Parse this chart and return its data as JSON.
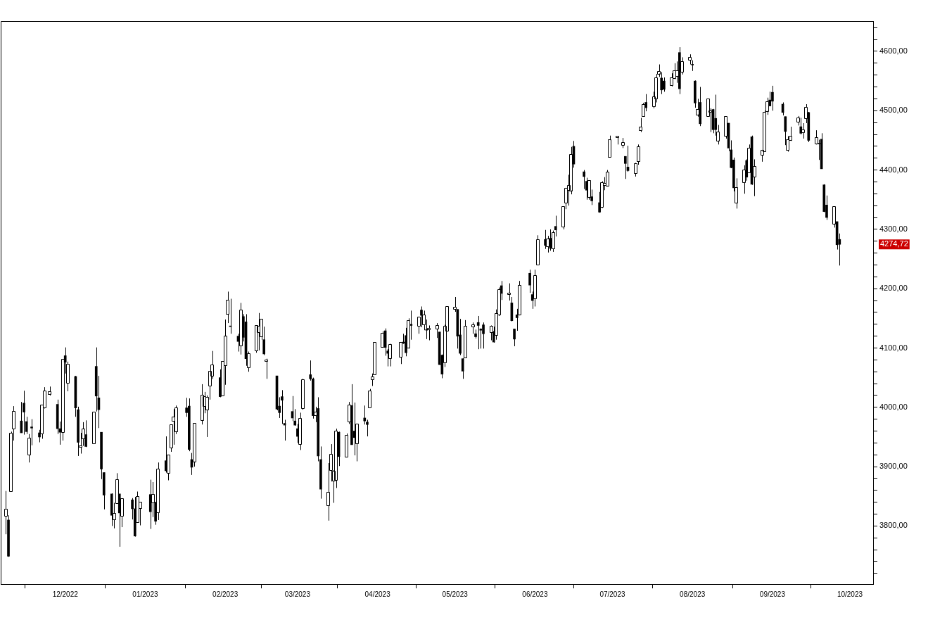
{
  "chart_data": {
    "type": "candlestick",
    "x": [
      "2022-11-08",
      "2022-11-09",
      "2022-11-10",
      "2022-11-11",
      "2022-11-14",
      "2022-11-15",
      "2022-11-16",
      "2022-11-17",
      "2022-11-18",
      "2022-11-21",
      "2022-11-22",
      "2022-11-23",
      "2022-11-25",
      "2022-11-28",
      "2022-11-29",
      "2022-11-30",
      "2022-12-01",
      "2022-12-02",
      "2022-12-05",
      "2022-12-06",
      "2022-12-07",
      "2022-12-08",
      "2022-12-09",
      "2022-12-12",
      "2022-12-13",
      "2022-12-14",
      "2022-12-15",
      "2022-12-16",
      "2022-12-19",
      "2022-12-20",
      "2022-12-21",
      "2022-12-22",
      "2022-12-23",
      "2022-12-27",
      "2022-12-28",
      "2022-12-29",
      "2022-12-30",
      "2023-01-03",
      "2023-01-04",
      "2023-01-05",
      "2023-01-06",
      "2023-01-09",
      "2023-01-10",
      "2023-01-11",
      "2023-01-12",
      "2023-01-13",
      "2023-01-17",
      "2023-01-18",
      "2023-01-19",
      "2023-01-20",
      "2023-01-23",
      "2023-01-24",
      "2023-01-25",
      "2023-01-26",
      "2023-01-27",
      "2023-01-30",
      "2023-01-31",
      "2023-02-01",
      "2023-02-02",
      "2023-02-03",
      "2023-02-06",
      "2023-02-07",
      "2023-02-08",
      "2023-02-09",
      "2023-02-10",
      "2023-02-13",
      "2023-02-14",
      "2023-02-15",
      "2023-02-16",
      "2023-02-17",
      "2023-02-21",
      "2023-02-22",
      "2023-02-23",
      "2023-02-24",
      "2023-02-27",
      "2023-02-28",
      "2023-03-01",
      "2023-03-02",
      "2023-03-03",
      "2023-03-06",
      "2023-03-07",
      "2023-03-08",
      "2023-03-09",
      "2023-03-10",
      "2023-03-13",
      "2023-03-14",
      "2023-03-15",
      "2023-03-16",
      "2023-03-17",
      "2023-03-20",
      "2023-03-21",
      "2023-03-22",
      "2023-03-23",
      "2023-03-24",
      "2023-03-27",
      "2023-03-28",
      "2023-03-29",
      "2023-03-30",
      "2023-03-31",
      "2023-04-03",
      "2023-04-04",
      "2023-04-05",
      "2023-04-06",
      "2023-04-10",
      "2023-04-11",
      "2023-04-12",
      "2023-04-13",
      "2023-04-14",
      "2023-04-17",
      "2023-04-18",
      "2023-04-19",
      "2023-04-20",
      "2023-04-21",
      "2023-04-24",
      "2023-04-25",
      "2023-04-26",
      "2023-04-27",
      "2023-04-28",
      "2023-05-01",
      "2023-05-02",
      "2023-05-03",
      "2023-05-04",
      "2023-05-05",
      "2023-05-08",
      "2023-05-09",
      "2023-05-10",
      "2023-05-11",
      "2023-05-12",
      "2023-05-15",
      "2023-05-16",
      "2023-05-17",
      "2023-05-18",
      "2023-05-19",
      "2023-05-22",
      "2023-05-23",
      "2023-05-24",
      "2023-05-25",
      "2023-05-26",
      "2023-05-30",
      "2023-05-31",
      "2023-06-01",
      "2023-06-02",
      "2023-06-05",
      "2023-06-06",
      "2023-06-07",
      "2023-06-08",
      "2023-06-09",
      "2023-06-12",
      "2023-06-13",
      "2023-06-14",
      "2023-06-15",
      "2023-06-16",
      "2023-06-20",
      "2023-06-21",
      "2023-06-22",
      "2023-06-23",
      "2023-06-26",
      "2023-06-27",
      "2023-06-28",
      "2023-06-29",
      "2023-06-30",
      "2023-07-03",
      "2023-07-05",
      "2023-07-06",
      "2023-07-07",
      "2023-07-10",
      "2023-07-11",
      "2023-07-12",
      "2023-07-13",
      "2023-07-14",
      "2023-07-17",
      "2023-07-18",
      "2023-07-19",
      "2023-07-20",
      "2023-07-21",
      "2023-07-24",
      "2023-07-25",
      "2023-07-26",
      "2023-07-27",
      "2023-07-28",
      "2023-07-31",
      "2023-08-01",
      "2023-08-02",
      "2023-08-03",
      "2023-08-04",
      "2023-08-07",
      "2023-08-08",
      "2023-08-09",
      "2023-08-10",
      "2023-08-11",
      "2023-08-14",
      "2023-08-15",
      "2023-08-16",
      "2023-08-17",
      "2023-08-18",
      "2023-08-21",
      "2023-08-22",
      "2023-08-23",
      "2023-08-24",
      "2023-08-25",
      "2023-08-28",
      "2023-08-29",
      "2023-08-30",
      "2023-08-31",
      "2023-09-01",
      "2023-09-05",
      "2023-09-06",
      "2023-09-07",
      "2023-09-08",
      "2023-09-11",
      "2023-09-12",
      "2023-09-13",
      "2023-09-14",
      "2023-09-15",
      "2023-09-18",
      "2023-09-19",
      "2023-09-20",
      "2023-09-21",
      "2023-09-22",
      "2023-09-25",
      "2023-09-26",
      "2023-09-27"
    ],
    "ohlc": [
      [
        3817,
        3859,
        3786,
        3828
      ],
      [
        3810,
        3818,
        3748,
        3749
      ],
      [
        3859,
        3959,
        3859,
        3956
      ],
      [
        3964,
        4002,
        3944,
        3993
      ],
      [
        3977,
        4009,
        3957,
        3957
      ],
      [
        4007,
        4028,
        3954,
        3992
      ],
      [
        3976,
        3984,
        3955,
        3959
      ],
      [
        3920,
        3955,
        3907,
        3947
      ],
      [
        3967,
        3980,
        3936,
        3965
      ],
      [
        3957,
        3962,
        3941,
        3950
      ],
      [
        3956,
        4004,
        3947,
        4003
      ],
      [
        4000,
        4034,
        3998,
        4027
      ],
      [
        4023,
        4035,
        4020,
        4026
      ],
      [
        4005,
        4013,
        3955,
        3964
      ],
      [
        3964,
        3976,
        3937,
        3958
      ],
      [
        3958,
        4080,
        3944,
        4080
      ],
      [
        4087,
        4101,
        4057,
        4076
      ],
      [
        4041,
        4077,
        4027,
        4072
      ],
      [
        4052,
        4053,
        3984,
        3999
      ],
      [
        3996,
        4001,
        3918,
        3941
      ],
      [
        3933,
        3957,
        3922,
        3933
      ],
      [
        3947,
        3975,
        3935,
        3963
      ],
      [
        3954,
        3978,
        3933,
        3934
      ],
      [
        3939,
        3991,
        3938,
        3991
      ],
      [
        4069,
        4101,
        3993,
        4019
      ],
      [
        4016,
        4053,
        3965,
        3996
      ],
      [
        3958,
        3958,
        3879,
        3896
      ],
      [
        3890,
        3890,
        3828,
        3852
      ],
      [
        3854,
        3855,
        3800,
        3818
      ],
      [
        3811,
        3839,
        3796,
        3821
      ],
      [
        3839,
        3889,
        3839,
        3878
      ],
      [
        3854,
        3854,
        3765,
        3822
      ],
      [
        3816,
        3845,
        3798,
        3845
      ],
      [
        3844,
        3847,
        3811,
        3829
      ],
      [
        3829,
        3849,
        3782,
        3783
      ],
      [
        3806,
        3858,
        3806,
        3849
      ],
      [
        3830,
        3840,
        3801,
        3840
      ],
      [
        3853,
        3878,
        3795,
        3824
      ],
      [
        3840,
        3874,
        3815,
        3853
      ],
      [
        3840,
        3840,
        3802,
        3808
      ],
      [
        3823,
        3907,
        3810,
        3895
      ],
      [
        3910,
        3951,
        3890,
        3893
      ],
      [
        3889,
        3920,
        3877,
        3919
      ],
      [
        3932,
        3970,
        3925,
        3970
      ],
      [
        3977,
        3997,
        3937,
        3983
      ],
      [
        3960,
        4003,
        3955,
        3999
      ],
      [
        3999,
        4016,
        3984,
        3991
      ],
      [
        4002,
        4015,
        3926,
        3929
      ],
      [
        3912,
        3923,
        3886,
        3899
      ],
      [
        3909,
        3973,
        3900,
        3973
      ],
      [
        3979,
        4039,
        3971,
        4020
      ],
      [
        4002,
        4026,
        3990,
        4017
      ],
      [
        3996,
        4020,
        3950,
        4016
      ],
      [
        4036,
        4061,
        4013,
        4060
      ],
      [
        4053,
        4095,
        4048,
        4071
      ],
      [
        4050,
        4064,
        4017,
        4018
      ],
      [
        4020,
        4077,
        4020,
        4077
      ],
      [
        4070,
        4148,
        4038,
        4119
      ],
      [
        4158,
        4195,
        4142,
        4180
      ],
      [
        4137,
        4183,
        4124,
        4136
      ],
      [
        4120,
        4124,
        4094,
        4111
      ],
      [
        4105,
        4176,
        4089,
        4164
      ],
      [
        4153,
        4157,
        4111,
        4118
      ],
      [
        4144,
        4157,
        4070,
        4082
      ],
      [
        4068,
        4094,
        4060,
        4090
      ],
      [
        4096,
        4138,
        4092,
        4137
      ],
      [
        4126,
        4159,
        4096,
        4136
      ],
      [
        4119,
        4149,
        4114,
        4148
      ],
      [
        4114,
        4136,
        4088,
        4090
      ],
      [
        4078,
        4082,
        4048,
        4079
      ],
      [
        4053,
        4053,
        3995,
        3997
      ],
      [
        4002,
        4017,
        3982,
        3991
      ],
      [
        4018,
        4029,
        3972,
        4012
      ],
      [
        3973,
        3979,
        3944,
        3970
      ],
      [
        3993,
        4019,
        3977,
        3982
      ],
      [
        3977,
        3997,
        3969,
        3970
      ],
      [
        3964,
        3972,
        3940,
        3951
      ],
      [
        3938,
        3991,
        3928,
        3981
      ],
      [
        3998,
        4048,
        3996,
        4046
      ],
      [
        4055,
        4079,
        4045,
        4048
      ],
      [
        4048,
        4050,
        3981,
        3986
      ],
      [
        3987,
        4001,
        3975,
        3992
      ],
      [
        3998,
        4017,
        3909,
        3918
      ],
      [
        3912,
        3934,
        3846,
        3862
      ],
      [
        3835,
        3906,
        3809,
        3856
      ],
      [
        3894,
        3938,
        3875,
        3920
      ],
      [
        3876,
        3894,
        3839,
        3892
      ],
      [
        3878,
        3964,
        3864,
        3960
      ],
      [
        3958,
        3959,
        3901,
        3917
      ],
      [
        3917,
        3956,
        3917,
        3952
      ],
      [
        3976,
        4009,
        3972,
        4003
      ],
      [
        4003,
        4039,
        3937,
        3937
      ],
      [
        3960,
        4008,
        3919,
        3949
      ],
      [
        3939,
        3972,
        3909,
        3971
      ],
      [
        3982,
        4003,
        3971,
        3977
      ],
      [
        3975,
        3979,
        3951,
        3971
      ],
      [
        4000,
        4031,
        3999,
        4027
      ],
      [
        4047,
        4057,
        4036,
        4051
      ],
      [
        4056,
        4110,
        4056,
        4109
      ],
      [
        4102,
        4128,
        4101,
        4124
      ],
      [
        4129,
        4133,
        4087,
        4101
      ],
      [
        4095,
        4098,
        4069,
        4091
      ],
      [
        4082,
        4107,
        4069,
        4105
      ],
      [
        4085,
        4110,
        4073,
        4109
      ],
      [
        4110,
        4124,
        4107,
        4108
      ],
      [
        4121,
        4134,
        4086,
        4092
      ],
      [
        4101,
        4150,
        4099,
        4146
      ],
      [
        4140,
        4163,
        4114,
        4138
      ],
      [
        4137,
        4152,
        4124,
        4151
      ],
      [
        4164,
        4170,
        4135,
        4155
      ],
      [
        4140,
        4163,
        4130,
        4155
      ],
      [
        4131,
        4148,
        4115,
        4130
      ],
      [
        4132,
        4138,
        4113,
        4133
      ],
      [
        4132,
        4142,
        4117,
        4137
      ],
      [
        4127,
        4127,
        4071,
        4072
      ],
      [
        4088,
        4089,
        4049,
        4056
      ],
      [
        4075,
        4139,
        4068,
        4136
      ],
      [
        4129,
        4170,
        4128,
        4169
      ],
      [
        4166,
        4186,
        4161,
        4168
      ],
      [
        4165,
        4165,
        4099,
        4120
      ],
      [
        4122,
        4149,
        4088,
        4091
      ],
      [
        4082,
        4083,
        4048,
        4061
      ],
      [
        4084,
        4147,
        4084,
        4136
      ],
      [
        4136,
        4143,
        4124,
        4138
      ],
      [
        4124,
        4131,
        4116,
        4119
      ],
      [
        4143,
        4154,
        4098,
        4138
      ],
      [
        4132,
        4133,
        4099,
        4130
      ],
      [
        4139,
        4143,
        4099,
        4124
      ],
      [
        4127,
        4138,
        4113,
        4136
      ],
      [
        4128,
        4136,
        4109,
        4110
      ],
      [
        4122,
        4165,
        4114,
        4158
      ],
      [
        4157,
        4202,
        4154,
        4198
      ],
      [
        4205,
        4213,
        4181,
        4192
      ],
      [
        4191,
        4209,
        4180,
        4192
      ],
      [
        4176,
        4186,
        4145,
        4146
      ],
      [
        4132,
        4132,
        4103,
        4115
      ],
      [
        4156,
        4166,
        4129,
        4151
      ],
      [
        4156,
        4213,
        4155,
        4205
      ],
      [
        4226,
        4232,
        4193,
        4206
      ],
      [
        4190,
        4195,
        4166,
        4180
      ],
      [
        4184,
        4232,
        4170,
        4222
      ],
      [
        4241,
        4290,
        4241,
        4282
      ],
      [
        4283,
        4299,
        4267,
        4273
      ],
      [
        4271,
        4289,
        4261,
        4283
      ],
      [
        4285,
        4300,
        4264,
        4268
      ],
      [
        4268,
        4298,
        4262,
        4294
      ],
      [
        4305,
        4323,
        4288,
        4299
      ],
      [
        4305,
        4339,
        4300,
        4338
      ],
      [
        4345,
        4370,
        4334,
        4369
      ],
      [
        4366,
        4392,
        4340,
        4373
      ],
      [
        4366,
        4439,
        4359,
        4426
      ],
      [
        4440,
        4449,
        4404,
        4410
      ],
      [
        4397,
        4400,
        4368,
        4389
      ],
      [
        4381,
        4387,
        4350,
        4366
      ],
      [
        4355,
        4382,
        4350,
        4382
      ],
      [
        4355,
        4367,
        4341,
        4348
      ],
      [
        4345,
        4363,
        4328,
        4329
      ],
      [
        4338,
        4381,
        4336,
        4378
      ],
      [
        4375,
        4388,
        4366,
        4377
      ],
      [
        4374,
        4400,
        4374,
        4396
      ],
      [
        4422,
        4458,
        4422,
        4450
      ],
      [
        4455,
        4457,
        4443,
        4455
      ],
      [
        4442,
        4454,
        4437,
        4446
      ],
      [
        4423,
        4423,
        4385,
        4411
      ],
      [
        4405,
        4441,
        4397,
        4399
      ],
      [
        4395,
        4412,
        4389,
        4410
      ],
      [
        4415,
        4443,
        4409,
        4439
      ],
      [
        4467,
        4488,
        4464,
        4472
      ],
      [
        4491,
        4513,
        4491,
        4510
      ],
      [
        4514,
        4528,
        4499,
        4505
      ],
      [
        4508,
        4532,
        4504,
        4523
      ],
      [
        4521,
        4562,
        4514,
        4555
      ],
      [
        4563,
        4578,
        4557,
        4566
      ],
      [
        4555,
        4565,
        4528,
        4535
      ],
      [
        4550,
        4556,
        4532,
        4536
      ],
      [
        4543,
        4563,
        4541,
        4555
      ],
      [
        4555,
        4580,
        4553,
        4567
      ],
      [
        4559,
        4583,
        4547,
        4567
      ],
      [
        4598,
        4607,
        4528,
        4537
      ],
      [
        4565,
        4590,
        4561,
        4582
      ],
      [
        4585,
        4595,
        4578,
        4589
      ],
      [
        4578,
        4585,
        4567,
        4577
      ],
      [
        4550,
        4551,
        4505,
        4513
      ],
      [
        4494,
        4520,
        4490,
        4502
      ],
      [
        4514,
        4540,
        4474,
        4478
      ],
      [
        4491,
        4520,
        4491,
        4519
      ],
      [
        4498,
        4504,
        4464,
        4499
      ],
      [
        4502,
        4503,
        4462,
        4468
      ],
      [
        4487,
        4527,
        4458,
        4468
      ],
      [
        4450,
        4476,
        4443,
        4464
      ],
      [
        4458,
        4490,
        4453,
        4490
      ],
      [
        4479,
        4479,
        4432,
        4437
      ],
      [
        4434,
        4450,
        4403,
        4404
      ],
      [
        4417,
        4421,
        4364,
        4370
      ],
      [
        4345,
        4386,
        4335,
        4370
      ],
      [
        4380,
        4408,
        4360,
        4400
      ],
      [
        4416,
        4418,
        4382,
        4388
      ],
      [
        4396,
        4443,
        4396,
        4436
      ],
      [
        4456,
        4458,
        4375,
        4376
      ],
      [
        4389,
        4418,
        4356,
        4406
      ],
      [
        4426,
        4434,
        4414,
        4433
      ],
      [
        4432,
        4500,
        4431,
        4497
      ],
      [
        4500,
        4522,
        4493,
        4515
      ],
      [
        4518,
        4532,
        4508,
        4508
      ],
      [
        4531,
        4542,
        4500,
        4516
      ],
      [
        4511,
        4514,
        4492,
        4497
      ],
      [
        4490,
        4490,
        4442,
        4465
      ],
      [
        4434,
        4457,
        4431,
        4451
      ],
      [
        4451,
        4473,
        4449,
        4457
      ],
      [
        4481,
        4491,
        4475,
        4487
      ],
      [
        4473,
        4488,
        4460,
        4462
      ],
      [
        4463,
        4479,
        4453,
        4467
      ],
      [
        4487,
        4511,
        4479,
        4505
      ],
      [
        4497,
        4498,
        4447,
        4450
      ],
      [
        4445,
        4467,
        4443,
        4454
      ],
      [
        4445,
        4451,
        4417,
        4444
      ],
      [
        4452,
        4462,
        4402,
        4402
      ],
      [
        4375,
        4376,
        4329,
        4330
      ],
      [
        4341,
        4357,
        4316,
        4320
      ],
      [
        4310,
        4338,
        4303,
        4338
      ],
      [
        4313,
        4313,
        4266,
        4274
      ],
      [
        4283,
        4293,
        4239,
        4274.72
      ]
    ],
    "xlim": [
      "2022-11-06",
      "2023-10-10"
    ],
    "xticks": [
      {
        "value": "2022-12-01",
        "label": "12/2022"
      },
      {
        "value": "2023-01-01",
        "label": "01/2023"
      },
      {
        "value": "2023-02-01",
        "label": "02/2023"
      },
      {
        "value": "2023-03-01",
        "label": "03/2023"
      },
      {
        "value": "2023-04-01",
        "label": "04/2023"
      },
      {
        "value": "2023-05-01",
        "label": "05/2023"
      },
      {
        "value": "2023-06-01",
        "label": "06/2023"
      },
      {
        "value": "2023-07-01",
        "label": "07/2023"
      },
      {
        "value": "2023-08-01",
        "label": "08/2023"
      },
      {
        "value": "2023-09-01",
        "label": "09/2023"
      },
      {
        "value": "2023-10-01",
        "label": "10/2023"
      }
    ],
    "ylim": [
      3702,
      4651
    ],
    "yticks": [
      {
        "value": 3720,
        "label": null
      },
      {
        "value": 3740,
        "label": null
      },
      {
        "value": 3760,
        "label": null
      },
      {
        "value": 3780,
        "label": null
      },
      {
        "value": 3800,
        "label": "3800,00"
      },
      {
        "value": 3820,
        "label": null
      },
      {
        "value": 3840,
        "label": null
      },
      {
        "value": 3860,
        "label": null
      },
      {
        "value": 3880,
        "label": null
      },
      {
        "value": 3900,
        "label": "3900,00"
      },
      {
        "value": 3920,
        "label": null
      },
      {
        "value": 3940,
        "label": null
      },
      {
        "value": 3960,
        "label": null
      },
      {
        "value": 3980,
        "label": null
      },
      {
        "value": 4000,
        "label": "4000,00"
      },
      {
        "value": 4020,
        "label": null
      },
      {
        "value": 4040,
        "label": null
      },
      {
        "value": 4060,
        "label": null
      },
      {
        "value": 4080,
        "label": null
      },
      {
        "value": 4100,
        "label": "4100,00"
      },
      {
        "value": 4120,
        "label": null
      },
      {
        "value": 4140,
        "label": null
      },
      {
        "value": 4160,
        "label": null
      },
      {
        "value": 4180,
        "label": null
      },
      {
        "value": 4200,
        "label": "4200,00"
      },
      {
        "value": 4220,
        "label": null
      },
      {
        "value": 4240,
        "label": null
      },
      {
        "value": 4260,
        "label": null
      },
      {
        "value": 4280,
        "label": null
      },
      {
        "value": 4300,
        "label": "4300,00"
      },
      {
        "value": 4320,
        "label": null
      },
      {
        "value": 4340,
        "label": null
      },
      {
        "value": 4360,
        "label": null
      },
      {
        "value": 4380,
        "label": null
      },
      {
        "value": 4400,
        "label": "4400,00"
      },
      {
        "value": 4420,
        "label": null
      },
      {
        "value": 4440,
        "label": null
      },
      {
        "value": 4460,
        "label": null
      },
      {
        "value": 4480,
        "label": null
      },
      {
        "value": 4500,
        "label": "4500,00"
      },
      {
        "value": 4520,
        "label": null
      },
      {
        "value": 4540,
        "label": null
      },
      {
        "value": 4560,
        "label": null
      },
      {
        "value": 4580,
        "label": null
      },
      {
        "value": 4600,
        "label": "4600,00"
      },
      {
        "value": 4620,
        "label": null
      },
      {
        "value": 4640,
        "label": null
      }
    ],
    "annotations": [
      "4274,72"
    ]
  }
}
